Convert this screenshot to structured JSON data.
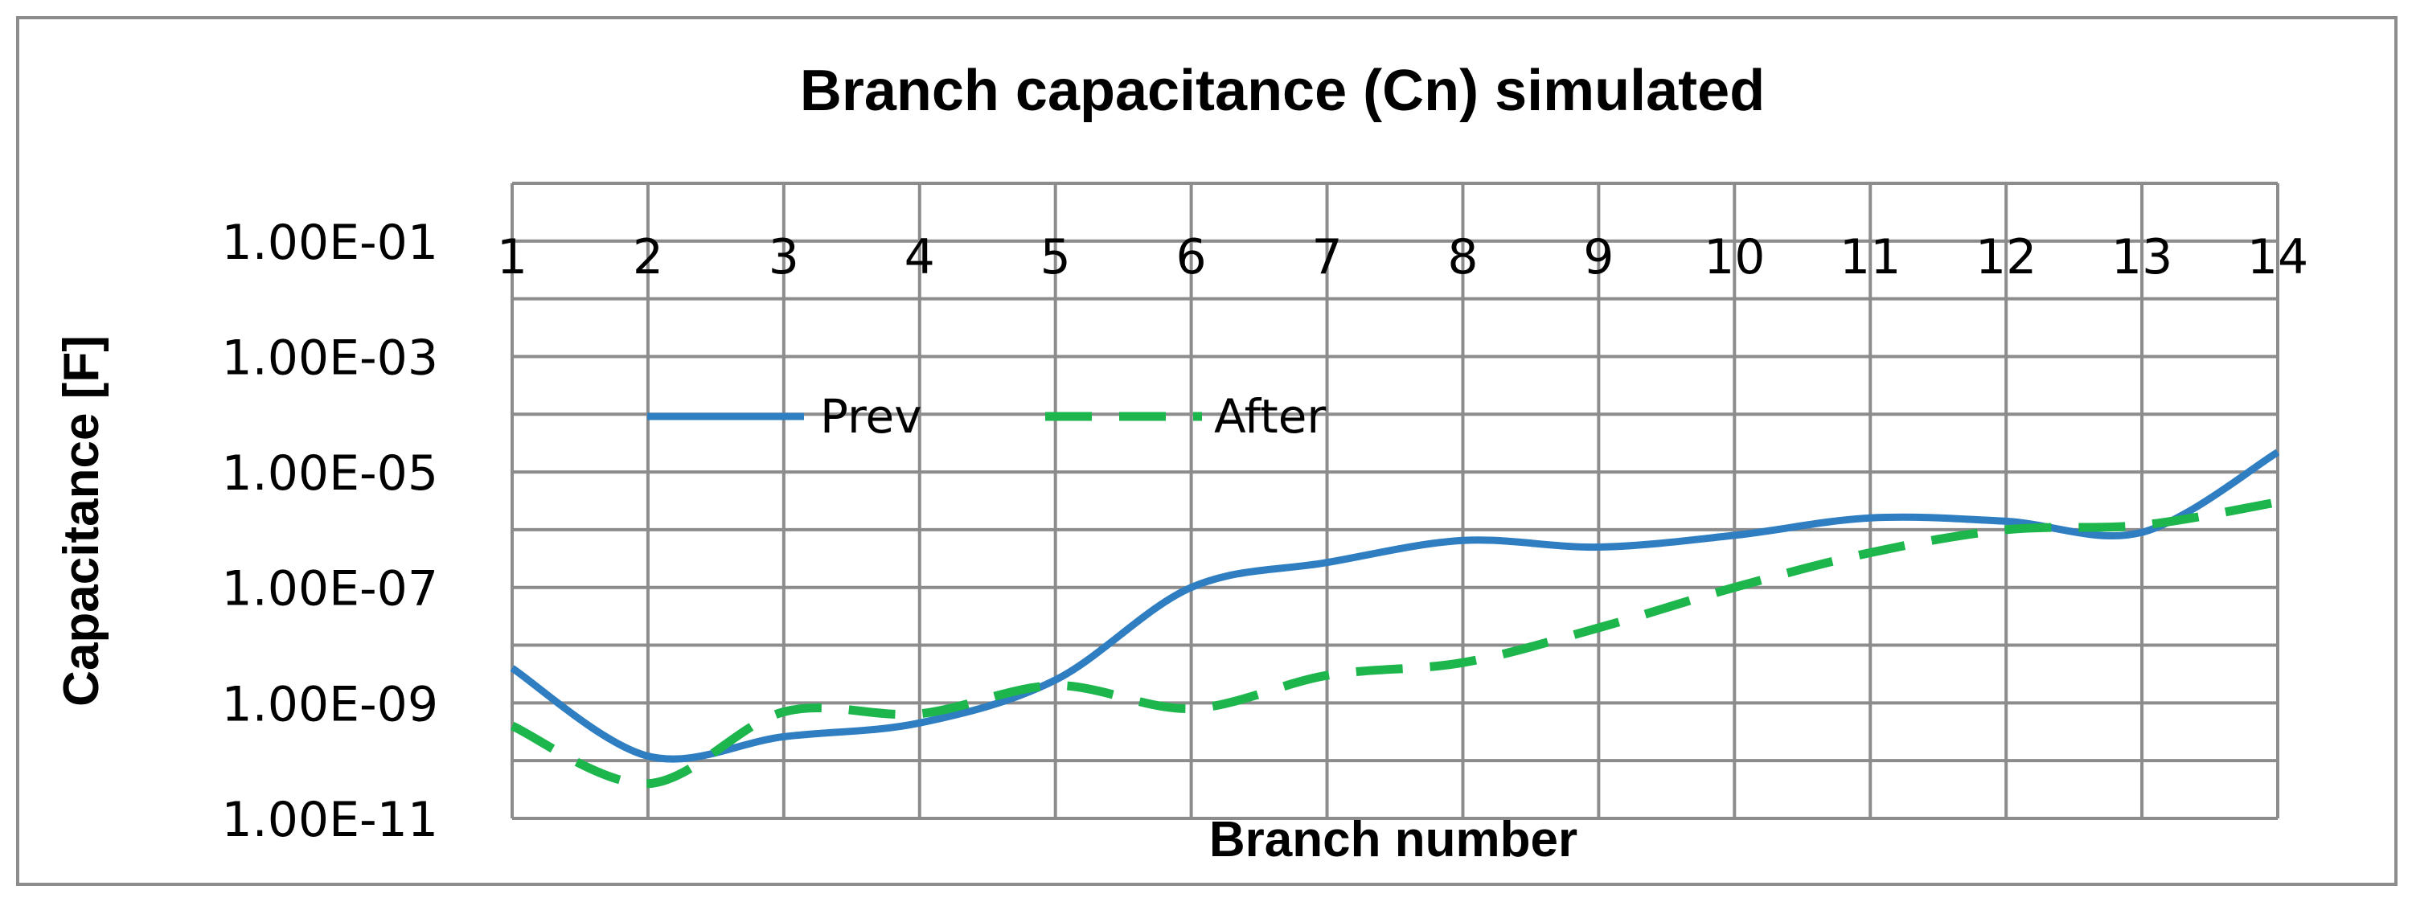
{
  "chart_data": {
    "type": "line",
    "title": "Branch capacitance (Cn) simulated",
    "xlabel": "Branch number",
    "ylabel": "Capacitance [F]",
    "y_scale": "log",
    "ylim": [
      1e-11,
      1
    ],
    "y_tick_labels": [
      "1.00E-01",
      "1.00E-03",
      "1.00E-05",
      "1.00E-07",
      "1.00E-09",
      "1.00E-11"
    ],
    "x_tick_labels": [
      "1",
      "2",
      "3",
      "4",
      "5",
      "6",
      "7",
      "8",
      "9",
      "10",
      "11",
      "12",
      "13",
      "14"
    ],
    "x": [
      1,
      2,
      3,
      4,
      5,
      6,
      7,
      8,
      9,
      10,
      11,
      12,
      13,
      14
    ],
    "grid": true,
    "legend_position": "upper-left",
    "series": [
      {
        "name": "Prev",
        "color": "#2E7EC1",
        "dash": "solid",
        "values": [
          4e-09,
          1.2e-10,
          2.6e-10,
          4.5e-10,
          2.5e-09,
          1e-07,
          2.7e-07,
          6.5e-07,
          5e-07,
          8e-07,
          1.6e-06,
          1.4e-06,
          9e-07,
          2.2e-05
        ]
      },
      {
        "name": "After",
        "color": "#1DB64D",
        "dash": "dashed",
        "values": [
          4e-10,
          4e-11,
          7e-10,
          6.5e-10,
          2e-09,
          8e-10,
          3e-09,
          5e-09,
          2e-08,
          1e-07,
          4e-07,
          1e-06,
          1.2e-06,
          3e-06
        ]
      }
    ]
  }
}
